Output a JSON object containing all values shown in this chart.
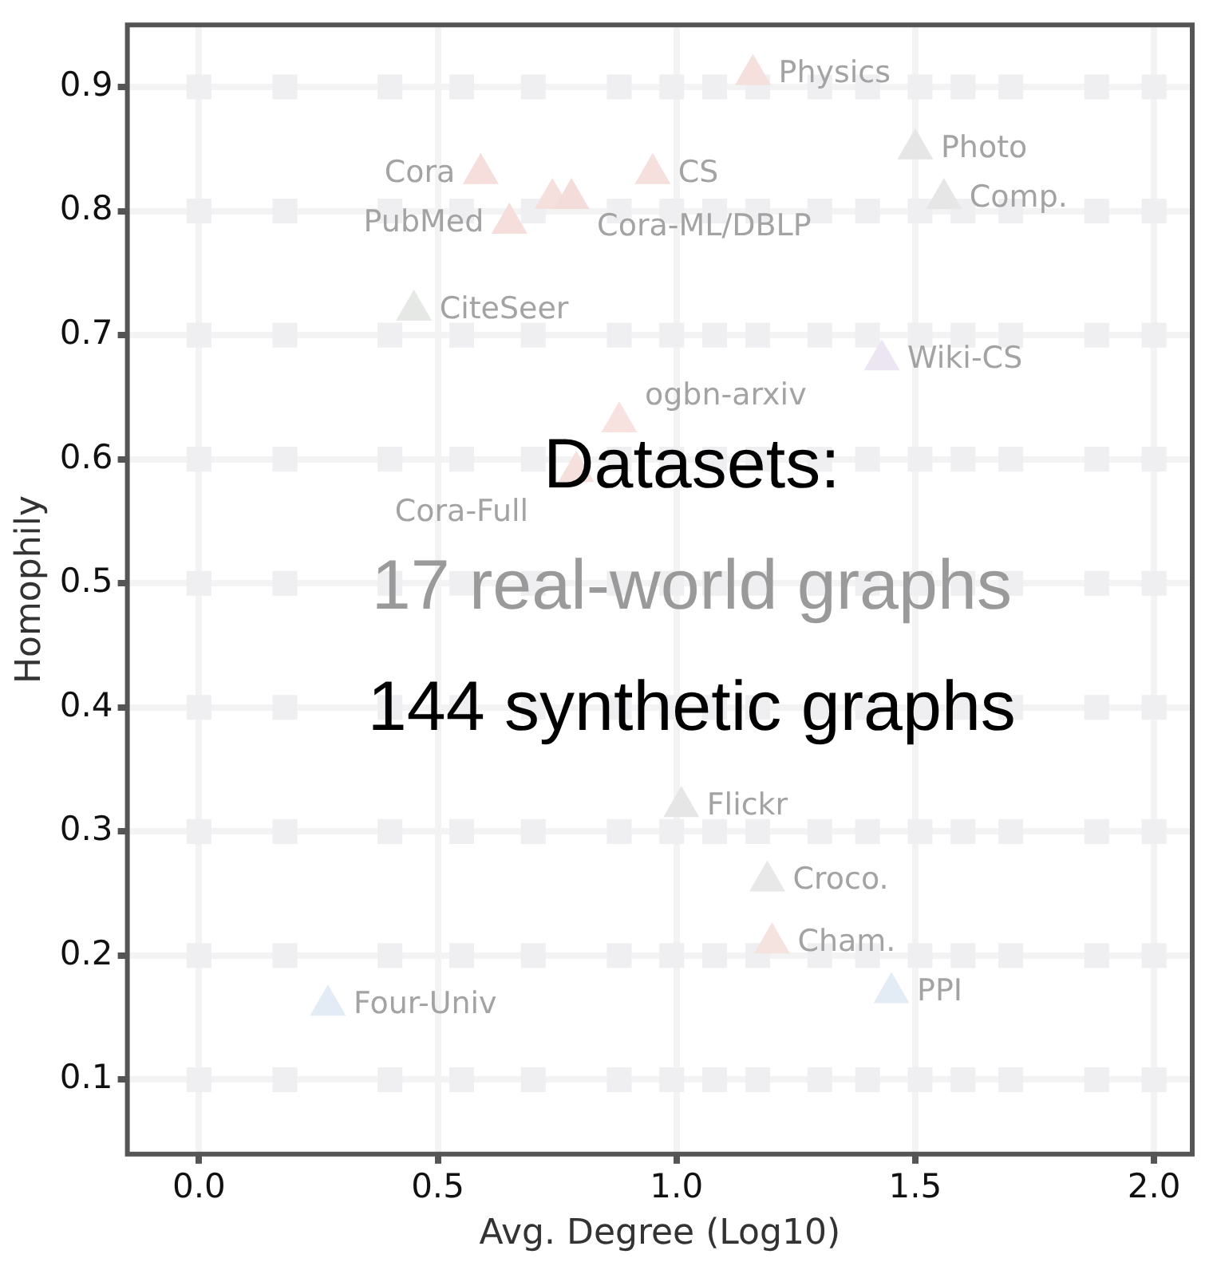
{
  "chart_data": {
    "type": "scatter",
    "xlabel": "Avg. Degree (Log10)",
    "ylabel": "Homophily",
    "xlim": [
      -0.15,
      2.08
    ],
    "ylim": [
      0.04,
      0.95
    ],
    "xticks": [
      {
        "value": 0,
        "label": "0.0"
      },
      {
        "value": 0.5,
        "label": "0.5"
      },
      {
        "value": 1,
        "label": "1.0"
      },
      {
        "value": 1.5,
        "label": "1.5"
      },
      {
        "value": 2,
        "label": "2.0"
      }
    ],
    "yticks": [
      0.1,
      0.2,
      0.3,
      0.4,
      0.5,
      0.6,
      0.7,
      0.8,
      0.9
    ],
    "grid": true,
    "legend": false,
    "series": [
      {
        "type": "scatter",
        "marker": "square",
        "color": "#efeff2",
        "x": [
          0,
          0.18,
          0.4,
          0.55,
          0.7,
          0.88,
          0.99,
          1.08,
          1.17,
          1.3,
          1.4,
          1.51,
          1.6,
          1.7,
          1.88,
          2.0,
          0,
          0.18,
          0.4,
          0.55,
          0.7,
          0.88,
          0.99,
          1.08,
          1.17,
          1.3,
          1.4,
          1.51,
          1.6,
          1.7,
          1.88,
          2.0,
          0,
          0.18,
          0.4,
          0.55,
          0.7,
          0.88,
          0.99,
          1.08,
          1.17,
          1.3,
          1.4,
          1.51,
          1.6,
          1.7,
          1.88,
          2.0,
          0,
          0.18,
          0.4,
          0.55,
          0.7,
          0.88,
          0.99,
          1.08,
          1.17,
          1.3,
          1.4,
          1.51,
          1.6,
          1.7,
          1.88,
          2.0,
          0,
          0.18,
          0.4,
          0.55,
          0.7,
          0.88,
          0.99,
          1.08,
          1.17,
          1.3,
          1.4,
          1.51,
          1.6,
          1.7,
          1.88,
          2.0,
          0,
          0.18,
          0.4,
          0.55,
          0.7,
          0.88,
          0.99,
          1.08,
          1.17,
          1.3,
          1.4,
          1.51,
          1.6,
          1.7,
          1.88,
          2.0,
          0,
          0.18,
          0.4,
          0.55,
          0.7,
          0.88,
          0.99,
          1.08,
          1.17,
          1.3,
          1.4,
          1.51,
          1.6,
          1.7,
          1.88,
          2.0,
          0,
          0.18,
          0.4,
          0.55,
          0.7,
          0.88,
          0.99,
          1.08,
          1.17,
          1.3,
          1.4,
          1.51,
          1.6,
          1.7,
          1.88,
          2.0,
          0,
          0.18,
          0.4,
          0.55,
          0.7,
          0.88,
          0.99,
          1.08,
          1.17,
          1.3,
          1.4,
          1.51,
          1.6,
          1.7,
          1.88,
          2.0
        ],
        "values": [
          0.9,
          0.9,
          0.9,
          0.9,
          0.9,
          0.9,
          0.9,
          0.9,
          0.9,
          0.9,
          0.9,
          0.9,
          0.9,
          0.9,
          0.9,
          0.9,
          0.8,
          0.8,
          0.8,
          0.8,
          0.8,
          0.8,
          0.8,
          0.8,
          0.8,
          0.8,
          0.8,
          0.8,
          0.8,
          0.8,
          0.8,
          0.8,
          0.7,
          0.7,
          0.7,
          0.7,
          0.7,
          0.7,
          0.7,
          0.7,
          0.7,
          0.7,
          0.7,
          0.7,
          0.7,
          0.7,
          0.7,
          0.7,
          0.6,
          0.6,
          0.6,
          0.6,
          0.6,
          0.6,
          0.6,
          0.6,
          0.6,
          0.6,
          0.6,
          0.6,
          0.6,
          0.6,
          0.6,
          0.6,
          0.5,
          0.5,
          0.5,
          0.5,
          0.5,
          0.5,
          0.5,
          0.5,
          0.5,
          0.5,
          0.5,
          0.5,
          0.5,
          0.5,
          0.5,
          0.5,
          0.4,
          0.4,
          0.4,
          0.4,
          0.4,
          0.4,
          0.4,
          0.4,
          0.4,
          0.4,
          0.4,
          0.4,
          0.4,
          0.4,
          0.4,
          0.4,
          0.3,
          0.3,
          0.3,
          0.3,
          0.3,
          0.3,
          0.3,
          0.3,
          0.3,
          0.3,
          0.3,
          0.3,
          0.3,
          0.3,
          0.3,
          0.3,
          0.2,
          0.2,
          0.2,
          0.2,
          0.2,
          0.2,
          0.2,
          0.2,
          0.2,
          0.2,
          0.2,
          0.2,
          0.2,
          0.2,
          0.2,
          0.2,
          0.1,
          0.1,
          0.1,
          0.1,
          0.1,
          0.1,
          0.1,
          0.1,
          0.1,
          0.1,
          0.1,
          0.1,
          0.1,
          0.1,
          0.1,
          0.1
        ]
      },
      {
        "type": "scatter",
        "marker": "triangle",
        "x": [
          1.16,
          0.59,
          0.95,
          1.5,
          1.56,
          0.65,
          0.74,
          0.78,
          0.45,
          1.43,
          0.88,
          0.79,
          1.01,
          1.19,
          1.2,
          1.45,
          0.27
        ],
        "values": [
          0.91,
          0.83,
          0.83,
          0.85,
          0.81,
          0.79,
          0.81,
          0.81,
          0.72,
          0.68,
          0.63,
          0.59,
          0.32,
          0.26,
          0.21,
          0.17,
          0.16
        ],
        "colors": [
          "#f5e0de",
          "#f5dedb",
          "#f5e0de",
          "#e6e6e6",
          "#e6e6e6",
          "#f5dedb",
          "#f5e0de",
          "#f3dcd9",
          "#e5e8e5",
          "#ece6f2",
          "#f7e2e0",
          "#f5e0de",
          "#e6e6e6",
          "#e8e8e8",
          "#f5e3e0",
          "#e3ebf5",
          "#e3ebf5"
        ]
      }
    ],
    "annotations": [
      {
        "text": "Physics",
        "x": 1.16,
        "y": 0.91
      },
      {
        "text": "Cora",
        "x": 0.59,
        "y": 0.83
      },
      {
        "text": "CS",
        "x": 0.95,
        "y": 0.83
      },
      {
        "text": "Photo",
        "x": 1.5,
        "y": 0.85
      },
      {
        "text": "Comp.",
        "x": 1.56,
        "y": 0.81
      },
      {
        "text": "PubMed",
        "x": 0.65,
        "y": 0.79
      },
      {
        "text": "Cora-ML/DBLP",
        "x": 0.78,
        "y": 0.81
      },
      {
        "text": "CiteSeer",
        "x": 0.45,
        "y": 0.72
      },
      {
        "text": "Wiki-CS",
        "x": 1.43,
        "y": 0.68
      },
      {
        "text": "ogbn-arxiv",
        "x": 0.88,
        "y": 0.63
      },
      {
        "text": "Cora-Full",
        "x": 0.79,
        "y": 0.59
      },
      {
        "text": "Flickr",
        "x": 1.01,
        "y": 0.32
      },
      {
        "text": "Croco.",
        "x": 1.19,
        "y": 0.26
      },
      {
        "text": "Cham.",
        "x": 1.2,
        "y": 0.21
      },
      {
        "text": "PPI",
        "x": 1.45,
        "y": 0.17
      },
      {
        "text": "Four-Univ",
        "x": 0.27,
        "y": 0.16
      },
      "Datasets:",
      "17 real-world graphs",
      "144 synthetic graphs"
    ]
  }
}
